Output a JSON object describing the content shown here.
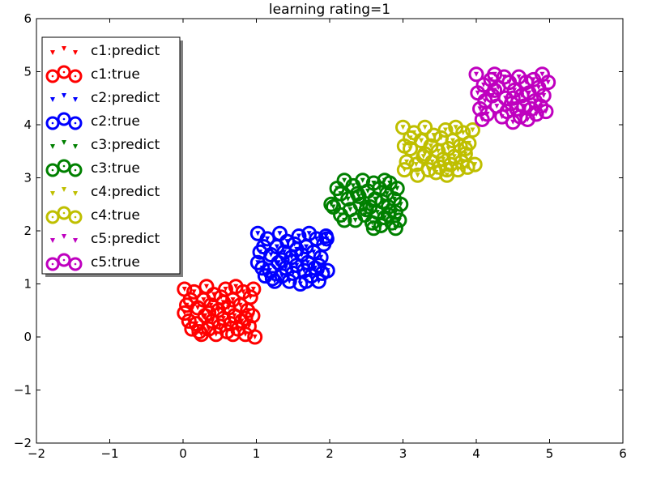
{
  "chart_data": {
    "type": "scatter",
    "title": "learning rating=1",
    "xlabel": "",
    "ylabel": "",
    "xlim": [
      -2,
      6
    ],
    "ylim": [
      -2,
      6
    ],
    "x_ticks": [
      -2,
      -1,
      0,
      1,
      2,
      3,
      4,
      5,
      6
    ],
    "y_ticks": [
      -2,
      -1,
      0,
      1,
      2,
      3,
      4,
      5,
      6
    ],
    "x_tick_labels": [
      "−2",
      "−1",
      "0",
      "1",
      "2",
      "3",
      "4",
      "5",
      "6"
    ],
    "y_tick_labels": [
      "−2",
      "−1",
      "0",
      "1",
      "2",
      "3",
      "4",
      "5",
      "6"
    ],
    "grid": false,
    "legend_position": "top-left",
    "legend": [
      {
        "label": "c1:predict",
        "color": "#ff0000",
        "marker": "triangle-down"
      },
      {
        "label": "c1:true",
        "color": "#ff0000",
        "marker": "circle"
      },
      {
        "label": "c2:predict",
        "color": "#0000ff",
        "marker": "triangle-down"
      },
      {
        "label": "c2:true",
        "color": "#0000ff",
        "marker": "circle"
      },
      {
        "label": "c3:predict",
        "color": "#008000",
        "marker": "triangle-down"
      },
      {
        "label": "c3:true",
        "color": "#008000",
        "marker": "circle"
      },
      {
        "label": "c4:predict",
        "color": "#bfbf00",
        "marker": "triangle-down"
      },
      {
        "label": "c4:true",
        "color": "#bfbf00",
        "marker": "circle"
      },
      {
        "label": "c5:predict",
        "color": "#bf00bf",
        "marker": "triangle-down"
      },
      {
        "label": "c5:true",
        "color": "#bf00bf",
        "marker": "circle"
      }
    ],
    "series": [
      {
        "name": "c1",
        "color": "#ff0000",
        "points": [
          [
            0.02,
            0.9
          ],
          [
            0.05,
            0.6
          ],
          [
            0.08,
            0.3
          ],
          [
            0.02,
            0.45
          ],
          [
            0.12,
            0.15
          ],
          [
            0.15,
            0.85
          ],
          [
            0.2,
            0.55
          ],
          [
            0.18,
            0.25
          ],
          [
            0.25,
            0.05
          ],
          [
            0.28,
            0.7
          ],
          [
            0.3,
            0.4
          ],
          [
            0.32,
            0.95
          ],
          [
            0.35,
            0.15
          ],
          [
            0.38,
            0.6
          ],
          [
            0.4,
            0.3
          ],
          [
            0.42,
            0.8
          ],
          [
            0.45,
            0.05
          ],
          [
            0.48,
            0.5
          ],
          [
            0.5,
            0.2
          ],
          [
            0.52,
            0.75
          ],
          [
            0.55,
            0.35
          ],
          [
            0.58,
            0.9
          ],
          [
            0.6,
            0.1
          ],
          [
            0.62,
            0.55
          ],
          [
            0.65,
            0.25
          ],
          [
            0.68,
            0.7
          ],
          [
            0.7,
            0.4
          ],
          [
            0.72,
            0.95
          ],
          [
            0.75,
            0.15
          ],
          [
            0.78,
            0.6
          ],
          [
            0.8,
            0.3
          ],
          [
            0.82,
            0.85
          ],
          [
            0.85,
            0.05
          ],
          [
            0.88,
            0.5
          ],
          [
            0.9,
            0.2
          ],
          [
            0.92,
            0.75
          ],
          [
            0.95,
            0.4
          ],
          [
            0.98,
            0.0
          ],
          [
            0.1,
            0.7
          ],
          [
            0.22,
            0.1
          ],
          [
            0.35,
            0.45
          ],
          [
            0.55,
            0.65
          ],
          [
            0.68,
            0.05
          ],
          [
            0.85,
            0.35
          ],
          [
            0.96,
            0.9
          ]
        ]
      },
      {
        "name": "c2",
        "color": "#0000ff",
        "points": [
          [
            1.02,
            1.95
          ],
          [
            1.05,
            1.6
          ],
          [
            1.08,
            1.3
          ],
          [
            1.02,
            1.4
          ],
          [
            1.12,
            1.15
          ],
          [
            1.15,
            1.85
          ],
          [
            1.2,
            1.55
          ],
          [
            1.18,
            1.25
          ],
          [
            1.25,
            1.05
          ],
          [
            1.28,
            1.7
          ],
          [
            1.3,
            1.4
          ],
          [
            1.32,
            1.95
          ],
          [
            1.35,
            1.15
          ],
          [
            1.38,
            1.6
          ],
          [
            1.4,
            1.3
          ],
          [
            1.42,
            1.8
          ],
          [
            1.45,
            1.05
          ],
          [
            1.48,
            1.5
          ],
          [
            1.5,
            1.2
          ],
          [
            1.52,
            1.75
          ],
          [
            1.55,
            1.35
          ],
          [
            1.58,
            1.9
          ],
          [
            1.6,
            1.0
          ],
          [
            1.62,
            1.55
          ],
          [
            1.65,
            1.25
          ],
          [
            1.68,
            1.7
          ],
          [
            1.7,
            1.4
          ],
          [
            1.72,
            1.95
          ],
          [
            1.75,
            1.15
          ],
          [
            1.78,
            1.6
          ],
          [
            1.8,
            1.3
          ],
          [
            1.82,
            1.85
          ],
          [
            1.85,
            1.05
          ],
          [
            1.88,
            1.5
          ],
          [
            1.9,
            1.2
          ],
          [
            1.92,
            1.75
          ],
          [
            1.95,
            1.9
          ],
          [
            1.97,
            1.25
          ],
          [
            1.1,
            1.7
          ],
          [
            1.22,
            1.1
          ],
          [
            1.35,
            1.45
          ],
          [
            1.55,
            1.65
          ],
          [
            1.68,
            1.05
          ],
          [
            1.85,
            1.35
          ],
          [
            1.96,
            1.85
          ]
        ]
      },
      {
        "name": "c3",
        "color": "#008000",
        "points": [
          [
            2.02,
            2.5
          ],
          [
            2.05,
            2.45
          ],
          [
            2.1,
            2.8
          ],
          [
            2.15,
            2.3
          ],
          [
            2.2,
            2.95
          ],
          [
            2.25,
            2.6
          ],
          [
            2.28,
            2.4
          ],
          [
            2.32,
            2.85
          ],
          [
            2.35,
            2.2
          ],
          [
            2.38,
            2.7
          ],
          [
            2.42,
            2.5
          ],
          [
            2.45,
            2.95
          ],
          [
            2.48,
            2.3
          ],
          [
            2.52,
            2.75
          ],
          [
            2.55,
            2.45
          ],
          [
            2.58,
            2.15
          ],
          [
            2.6,
            2.9
          ],
          [
            2.62,
            2.6
          ],
          [
            2.65,
            2.35
          ],
          [
            2.68,
            2.8
          ],
          [
            2.7,
            2.1
          ],
          [
            2.72,
            2.55
          ],
          [
            2.75,
            2.25
          ],
          [
            2.78,
            2.7
          ],
          [
            2.8,
            2.45
          ],
          [
            2.82,
            2.9
          ],
          [
            2.85,
            2.15
          ],
          [
            2.88,
            2.6
          ],
          [
            2.9,
            2.35
          ],
          [
            2.92,
            2.8
          ],
          [
            2.95,
            2.2
          ],
          [
            2.97,
            2.5
          ],
          [
            2.2,
            2.2
          ],
          [
            2.4,
            2.65
          ],
          [
            2.6,
            2.05
          ],
          [
            2.8,
            2.3
          ],
          [
            2.15,
            2.7
          ],
          [
            2.5,
            2.4
          ],
          [
            2.75,
            2.95
          ],
          [
            2.9,
            2.05
          ]
        ]
      },
      {
        "name": "c4",
        "color": "#bfbf00",
        "points": [
          [
            3.0,
            3.95
          ],
          [
            3.02,
            3.6
          ],
          [
            3.05,
            3.3
          ],
          [
            3.02,
            3.15
          ],
          [
            3.1,
            3.55
          ],
          [
            3.15,
            3.85
          ],
          [
            3.18,
            3.25
          ],
          [
            3.2,
            3.05
          ],
          [
            3.25,
            3.7
          ],
          [
            3.28,
            3.4
          ],
          [
            3.3,
            3.95
          ],
          [
            3.35,
            3.15
          ],
          [
            3.38,
            3.6
          ],
          [
            3.4,
            3.3
          ],
          [
            3.42,
            3.8
          ],
          [
            3.45,
            3.1
          ],
          [
            3.48,
            3.5
          ],
          [
            3.5,
            3.2
          ],
          [
            3.52,
            3.75
          ],
          [
            3.55,
            3.35
          ],
          [
            3.58,
            3.9
          ],
          [
            3.6,
            3.05
          ],
          [
            3.62,
            3.55
          ],
          [
            3.65,
            3.25
          ],
          [
            3.68,
            3.7
          ],
          [
            3.7,
            3.4
          ],
          [
            3.72,
            3.95
          ],
          [
            3.75,
            3.15
          ],
          [
            3.78,
            3.6
          ],
          [
            3.8,
            3.3
          ],
          [
            3.82,
            3.85
          ],
          [
            3.85,
            3.45
          ],
          [
            3.88,
            3.2
          ],
          [
            3.9,
            3.65
          ],
          [
            3.95,
            3.9
          ],
          [
            3.98,
            3.25
          ],
          [
            3.3,
            3.45
          ],
          [
            3.6,
            3.15
          ],
          [
            3.85,
            3.55
          ],
          [
            3.1,
            3.75
          ]
        ]
      },
      {
        "name": "c5",
        "color": "#bf00bf",
        "points": [
          [
            4.0,
            4.95
          ],
          [
            4.02,
            4.6
          ],
          [
            4.05,
            4.3
          ],
          [
            4.08,
            4.1
          ],
          [
            4.1,
            4.75
          ],
          [
            4.12,
            4.45
          ],
          [
            4.15,
            4.2
          ],
          [
            4.2,
            4.85
          ],
          [
            4.22,
            4.55
          ],
          [
            4.25,
            4.95
          ],
          [
            4.28,
            4.35
          ],
          [
            4.3,
            4.7
          ],
          [
            4.35,
            4.15
          ],
          [
            4.38,
            4.9
          ],
          [
            4.4,
            4.5
          ],
          [
            4.42,
            4.25
          ],
          [
            4.45,
            4.8
          ],
          [
            4.48,
            4.4
          ],
          [
            4.5,
            4.05
          ],
          [
            4.52,
            4.65
          ],
          [
            4.55,
            4.3
          ],
          [
            4.58,
            4.9
          ],
          [
            4.6,
            4.15
          ],
          [
            4.62,
            4.55
          ],
          [
            4.65,
            4.35
          ],
          [
            4.68,
            4.8
          ],
          [
            4.7,
            4.1
          ],
          [
            4.72,
            4.6
          ],
          [
            4.75,
            4.3
          ],
          [
            4.78,
            4.85
          ],
          [
            4.8,
            4.45
          ],
          [
            4.82,
            4.2
          ],
          [
            4.85,
            4.7
          ],
          [
            4.88,
            4.35
          ],
          [
            4.9,
            4.95
          ],
          [
            4.92,
            4.55
          ],
          [
            4.95,
            4.25
          ],
          [
            4.98,
            4.8
          ],
          [
            4.5,
            4.5
          ],
          [
            4.25,
            4.65
          ]
        ]
      }
    ]
  }
}
